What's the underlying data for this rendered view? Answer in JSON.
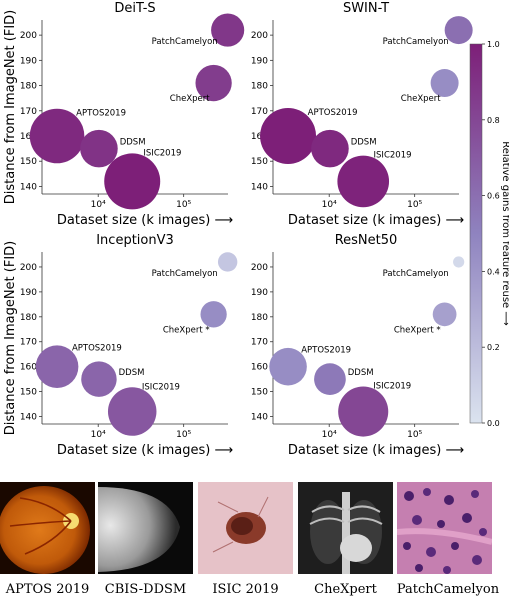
{
  "figure": {
    "colorbar": {
      "label": "Relative gains from feature reuse ⟶",
      "ticks": [
        "0.0",
        "0.2",
        "0.4",
        "0.6",
        "0.8",
        "1.0"
      ],
      "range": [
        0,
        1
      ],
      "colors": [
        "#dbe3ef",
        "#8f83bf",
        "#7d1f78"
      ]
    },
    "shared_xlabel": "Dataset size (k images) ⟶",
    "shared_ylabel": "Distance from ImageNet (FID)"
  },
  "chart_data": [
    {
      "type": "scatter",
      "title": "DeiT-S",
      "xlabel": "Dataset size (k images) ⟶",
      "ylabel": "Distance from ImageNet (FID)",
      "x_scale": "log",
      "xlim": [
        2.2,
        330
      ],
      "ylim": [
        137,
        206
      ],
      "x_ticks": [
        {
          "value": 10,
          "label": "10⁴"
        },
        {
          "value": 100,
          "label": "10⁵"
        }
      ],
      "y_ticks": [
        140,
        150,
        160,
        170,
        180,
        190,
        200
      ],
      "points": [
        {
          "label": "APTOS2019",
          "x": 3.3,
          "y": 160,
          "gain": 0.95,
          "size": 0.95
        },
        {
          "label": "DDSM",
          "x": 10.2,
          "y": 155,
          "gain": 0.9,
          "size": 0.45
        },
        {
          "label": "ISIC2019",
          "x": 25,
          "y": 142,
          "gain": 1.0,
          "size": 1.0
        },
        {
          "label": "CheXpert",
          "x": 224,
          "y": 181,
          "gain": 0.85,
          "size": 0.42
        },
        {
          "label": "PatchCamelyon",
          "x": 327,
          "y": 202,
          "gain": 0.88,
          "size": 0.35
        }
      ]
    },
    {
      "type": "scatter",
      "title": "SWIN-T",
      "xlabel": "Dataset size (k images) ⟶",
      "ylabel": "",
      "x_scale": "log",
      "xlim": [
        2.2,
        330
      ],
      "ylim": [
        137,
        206
      ],
      "x_ticks": [
        {
          "value": 10,
          "label": "10⁴"
        },
        {
          "value": 100,
          "label": "10⁵"
        }
      ],
      "y_ticks": [
        140,
        150,
        160,
        170,
        180,
        190,
        200
      ],
      "points": [
        {
          "label": "APTOS2019",
          "x": 3.3,
          "y": 160,
          "gain": 1.0,
          "size": 1.0
        },
        {
          "label": "DDSM",
          "x": 10.2,
          "y": 155,
          "gain": 0.95,
          "size": 0.45
        },
        {
          "label": "ISIC2019",
          "x": 25,
          "y": 142,
          "gain": 0.98,
          "size": 0.85
        },
        {
          "label": "CheXpert",
          "x": 224,
          "y": 181,
          "gain": 0.45,
          "size": 0.25
        },
        {
          "label": "PatchCamelyon",
          "x": 327,
          "y": 202,
          "gain": 0.6,
          "size": 0.25
        }
      ]
    },
    {
      "type": "scatter",
      "title": "InceptionV3",
      "xlabel": "Dataset size (k images) ⟶",
      "ylabel": "Distance from ImageNet (FID)",
      "x_scale": "log",
      "xlim": [
        2.2,
        330
      ],
      "ylim": [
        137,
        206
      ],
      "x_ticks": [
        {
          "value": 10,
          "label": "10⁴"
        },
        {
          "value": 100,
          "label": "10⁵"
        }
      ],
      "y_ticks": [
        140,
        150,
        160,
        170,
        180,
        190,
        200
      ],
      "points": [
        {
          "label": "APTOS2019",
          "x": 3.3,
          "y": 160,
          "gain": 0.65,
          "size": 0.58
        },
        {
          "label": "DDSM",
          "x": 10.2,
          "y": 155,
          "gain": 0.65,
          "size": 0.4
        },
        {
          "label": "ISIC2019",
          "x": 25,
          "y": 142,
          "gain": 0.72,
          "size": 0.75
        },
        {
          "label": "CheXpert *",
          "x": 224,
          "y": 181,
          "gain": 0.45,
          "size": 0.22
        },
        {
          "label": "PatchCamelyon",
          "x": 327,
          "y": 202,
          "gain": 0.15,
          "size": 0.12
        }
      ]
    },
    {
      "type": "scatter",
      "title": "ResNet50",
      "xlabel": "Dataset size (k images) ⟶",
      "ylabel": "",
      "x_scale": "log",
      "xlim": [
        2.2,
        330
      ],
      "ylim": [
        137,
        206
      ],
      "x_ticks": [
        {
          "value": 10,
          "label": "10⁴"
        },
        {
          "value": 100,
          "label": "10⁵"
        }
      ],
      "y_ticks": [
        140,
        150,
        160,
        170,
        180,
        190,
        200
      ],
      "points": [
        {
          "label": "APTOS2019",
          "x": 3.3,
          "y": 160,
          "gain": 0.45,
          "size": 0.45
        },
        {
          "label": "DDSM",
          "x": 10.2,
          "y": 155,
          "gain": 0.55,
          "size": 0.32
        },
        {
          "label": "ISIC2019",
          "x": 25,
          "y": 142,
          "gain": 0.8,
          "size": 0.8
        },
        {
          "label": "CheXpert *",
          "x": 224,
          "y": 181,
          "gain": 0.35,
          "size": 0.18
        },
        {
          "label": "PatchCamelyon",
          "x": 327,
          "y": 202,
          "gain": 0.05,
          "size": 0.04
        }
      ]
    }
  ],
  "examples": [
    {
      "name": "aptos",
      "caption": "APTOS 2019"
    },
    {
      "name": "cbis-ddsm",
      "caption": "CBIS-DDSM"
    },
    {
      "name": "isic",
      "caption": "ISIC 2019"
    },
    {
      "name": "chexpert",
      "caption": "CheXpert"
    },
    {
      "name": "patchcamelyon",
      "caption": "PatchCamelyon"
    }
  ]
}
